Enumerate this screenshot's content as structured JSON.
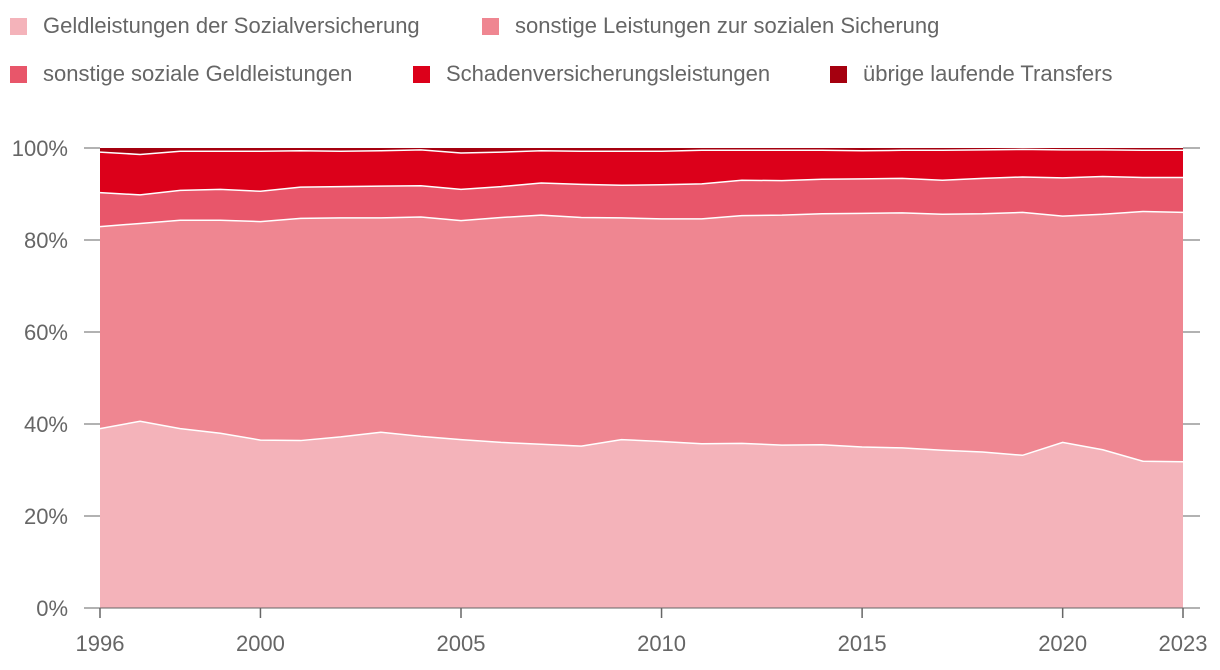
{
  "chart_data": {
    "type": "area",
    "stacked": true,
    "normalized": true,
    "x": [
      1996,
      1997,
      1998,
      1999,
      2000,
      2001,
      2002,
      2003,
      2004,
      2005,
      2006,
      2007,
      2008,
      2009,
      2010,
      2011,
      2012,
      2013,
      2014,
      2015,
      2016,
      2017,
      2018,
      2019,
      2020,
      2021,
      2022,
      2023
    ],
    "series": [
      {
        "name": "Geldleistungen der Sozialversicherung",
        "color": "#f4b3ba",
        "values": [
          39.0,
          40.6,
          39.0,
          38.0,
          36.5,
          36.4,
          37.2,
          38.2,
          37.3,
          36.6,
          36.0,
          35.6,
          35.2,
          36.6,
          36.2,
          35.7,
          35.8,
          35.4,
          35.5,
          35.0,
          34.8,
          34.3,
          33.9,
          33.2,
          36.0,
          34.4,
          31.9,
          31.8
        ]
      },
      {
        "name": "sonstige Leistungen zur sozialen Sicherung",
        "color": "#ef8691",
        "values": [
          43.9,
          43.0,
          45.3,
          46.3,
          47.5,
          48.3,
          47.6,
          46.6,
          47.7,
          47.6,
          48.9,
          49.8,
          49.7,
          48.2,
          48.4,
          48.9,
          49.5,
          50.0,
          50.2,
          50.8,
          51.1,
          51.3,
          51.8,
          52.8,
          49.2,
          51.2,
          54.3,
          54.2
        ]
      },
      {
        "name": "sonstige soziale Geldleistungen",
        "color": "#e8566a",
        "values": [
          7.4,
          6.2,
          6.5,
          6.7,
          6.6,
          6.8,
          6.8,
          6.9,
          6.8,
          6.8,
          6.7,
          7.0,
          7.2,
          7.1,
          7.4,
          7.6,
          7.7,
          7.5,
          7.5,
          7.5,
          7.5,
          7.4,
          7.7,
          7.7,
          8.3,
          8.2,
          7.4,
          7.6
        ]
      },
      {
        "name": "Schadenversicherungsleistungen",
        "color": "#dc001a",
        "values": [
          8.8,
          8.8,
          8.5,
          8.3,
          8.7,
          7.9,
          7.7,
          7.7,
          7.8,
          7.9,
          7.5,
          7.0,
          7.2,
          7.4,
          7.3,
          7.3,
          6.5,
          6.6,
          6.3,
          6.1,
          6.1,
          6.5,
          6.2,
          6.0,
          6.1,
          5.8,
          5.9,
          5.9
        ]
      },
      {
        "name": "übrige laufende Transfers",
        "color": "#a5000f",
        "values": [
          0.9,
          1.4,
          0.7,
          0.7,
          0.7,
          0.6,
          0.7,
          0.6,
          0.4,
          1.1,
          0.9,
          0.6,
          0.7,
          0.7,
          0.7,
          0.5,
          0.5,
          0.5,
          0.5,
          0.6,
          0.5,
          0.5,
          0.4,
          0.3,
          0.4,
          0.4,
          0.5,
          0.5
        ]
      }
    ],
    "ylim": [
      0,
      100
    ],
    "yticks": [
      "0%",
      "20%",
      "40%",
      "60%",
      "80%",
      "100%"
    ],
    "ytick_values": [
      0,
      20,
      40,
      60,
      80,
      100
    ],
    "xticks": [
      "1996",
      "2000",
      "2005",
      "2010",
      "2015",
      "2020",
      "2023"
    ],
    "xtick_values": [
      1996,
      2000,
      2005,
      2010,
      2015,
      2020,
      2023
    ],
    "title": "",
    "xlabel": "",
    "ylabel": "",
    "grid": true,
    "legend_position": "top"
  }
}
